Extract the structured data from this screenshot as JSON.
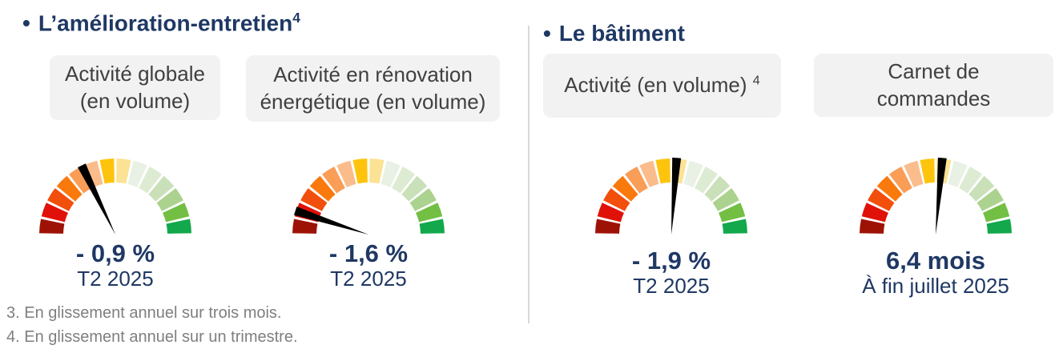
{
  "colors": {
    "accent_navy": "#1F3864",
    "card_background": "#F2F2F2",
    "card_text": "#404040",
    "footnote_gray": "#7F7F7F",
    "divider_gray": "#D9D9D9"
  },
  "section1": {
    "bullet": "•",
    "title": "L’amélioration-entretien",
    "sup": "4"
  },
  "section2": {
    "bullet": "•",
    "title": "Le bâtiment"
  },
  "cards": {
    "c1": {
      "line1": "Activité globale",
      "line2": "(en volume)"
    },
    "c2": {
      "line1": "Activité en rénovation",
      "line2": "énergétique (en volume)"
    },
    "c3": {
      "line1": "Activité (en volume)",
      "sup": "4"
    },
    "c4": {
      "line1": "Carnet de",
      "line2": "commandes"
    }
  },
  "gauges": {
    "g1": {
      "value": "- 0,9 %",
      "period": "T2 2025",
      "needle_deg_from_vertical": -26
    },
    "g2": {
      "value": "- 1,6 %",
      "period": "T2 2025",
      "needle_deg_from_vertical": -72
    },
    "g3": {
      "value": "- 1,9 %",
      "period": "T2 2025",
      "needle_deg_from_vertical": 4
    },
    "g4": {
      "value": "6,4 mois",
      "period": "À fin juillet 2025",
      "needle_deg_from_vertical": 5
    }
  },
  "gauge_style": {
    "segment_colors": [
      "#9E1206",
      "#E01108",
      "#F24E0C",
      "#F9790D",
      "#F99D57",
      "#FBBC8C",
      "#FEC40D",
      "#FBE294",
      "#E9F1E4",
      "#DCEBD2",
      "#C9E0B9",
      "#ABD28E",
      "#72BF44",
      "#12A84B"
    ],
    "needle_color": "#000000"
  },
  "footnotes": {
    "f3": "3. En glissement annuel sur trois mois.",
    "f4": "4. En glissement annuel sur un trimestre."
  },
  "chart_data": [
    {
      "type": "gauge",
      "section": "L’amélioration-entretien",
      "title": "Activité globale (en volume)",
      "value": -0.9,
      "unit": "%",
      "value_label": "- 0,9 %",
      "period": "T2 2025",
      "needle_fraction_0worst_1best": 0.36,
      "scale": "red (left) to green (right), 14 segments"
    },
    {
      "type": "gauge",
      "section": "L’amélioration-entretien",
      "title": "Activité en rénovation énergétique (en volume)",
      "value": -1.6,
      "unit": "%",
      "value_label": "- 1,6 %",
      "period": "T2 2025",
      "needle_fraction_0worst_1best": 0.1,
      "scale": "red (left) to green (right), 14 segments"
    },
    {
      "type": "gauge",
      "section": "Le bâtiment",
      "title": "Activité (en volume)",
      "value": -1.9,
      "unit": "%",
      "value_label": "- 1,9 %",
      "period": "T2 2025",
      "needle_fraction_0worst_1best": 0.52,
      "scale": "red (left) to green (right), 14 segments"
    },
    {
      "type": "gauge",
      "section": "Le bâtiment",
      "title": "Carnet de commandes",
      "value": 6.4,
      "unit": "mois",
      "value_label": "6,4 mois",
      "period": "À fin juillet 2025",
      "needle_fraction_0worst_1best": 0.53,
      "scale": "red (left) to green (right), 14 segments"
    }
  ]
}
